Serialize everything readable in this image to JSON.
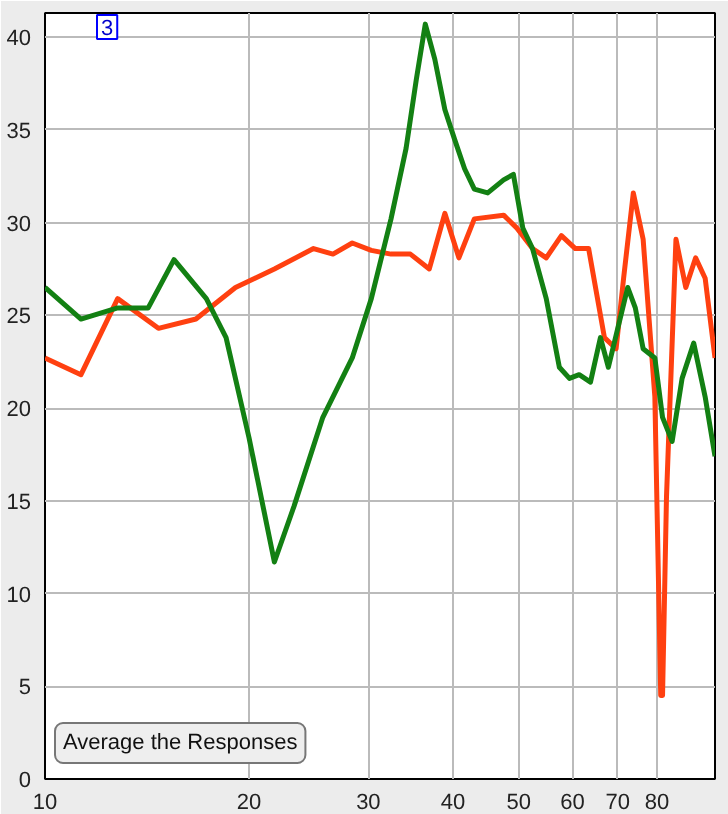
{
  "chart_data": {
    "type": "line",
    "annotations": [
      "3",
      "Average the Responses"
    ],
    "xlim": [
      10,
      97.4
    ],
    "ylim": [
      0,
      41.3
    ],
    "log": "x",
    "grid": true,
    "line_style": "solid",
    "xticks": [
      10,
      20,
      30,
      40,
      50,
      60,
      70,
      80
    ],
    "yticks": [
      0,
      5,
      10,
      15,
      20,
      25,
      30,
      35,
      40
    ],
    "series": [
      {
        "color": "#ff4010",
        "x": [
          10,
          11.3,
          12.8,
          14.7,
          16.7,
          19.1,
          21.8,
          24.9,
          26.6,
          28.4,
          30.3,
          32.4,
          34.6,
          36.9,
          38.9,
          40.8,
          43.0,
          47.5,
          49.7,
          52.4,
          54.9,
          57.8,
          60.6,
          63.4,
          66.9,
          69.6,
          71.4,
          73.8,
          76.3,
          79.4,
          81.0,
          81.5,
          82.6,
          85.3,
          88.2,
          91.2,
          94.2,
          97.4
        ],
        "values": [
          22.7,
          21.8,
          25.9,
          24.3,
          24.8,
          26.5,
          27.5,
          28.6,
          28.3,
          28.9,
          28.5,
          28.3,
          28.3,
          27.5,
          30.5,
          28.1,
          30.2,
          30.4,
          29.7,
          28.6,
          28.1,
          29.3,
          28.6,
          28.6,
          23.8,
          23.2,
          27.0,
          31.6,
          29.1,
          20.6,
          4.5,
          4.5,
          15.2,
          29.1,
          26.5,
          28.1,
          27.0,
          22.7
        ]
      },
      {
        "color": "#138013",
        "x": [
          10,
          11.3,
          12.8,
          14.2,
          15.5,
          17.3,
          18.5,
          20,
          21.8,
          23.3,
          25.7,
          28.4,
          30.3,
          32.4,
          34.1,
          35.3,
          36.4,
          37.6,
          38.9,
          40.2,
          41.6,
          43.0,
          45.0,
          47.5,
          49.1,
          50.7,
          52.4,
          54.9,
          57.4,
          59.4,
          61.4,
          63.8,
          66.0,
          67.8,
          70.0,
          72.4,
          74.3,
          76.3,
          79.4,
          81.5,
          84.2,
          87.1,
          90.6,
          94.2,
          97.4
        ],
        "values": [
          26.5,
          24.8,
          25.4,
          25.4,
          28.0,
          25.9,
          23.8,
          18.4,
          11.7,
          14.7,
          19.5,
          22.7,
          25.9,
          30.2,
          34.0,
          37.7,
          40.7,
          38.8,
          36.1,
          34.5,
          32.9,
          31.8,
          31.6,
          32.3,
          32.6,
          29.7,
          28.6,
          25.9,
          22.2,
          21.6,
          21.8,
          21.4,
          23.8,
          22.2,
          24.3,
          26.5,
          25.4,
          23.2,
          22.7,
          19.5,
          18.2,
          21.6,
          23.5,
          20.6,
          17.4
        ]
      }
    ]
  }
}
